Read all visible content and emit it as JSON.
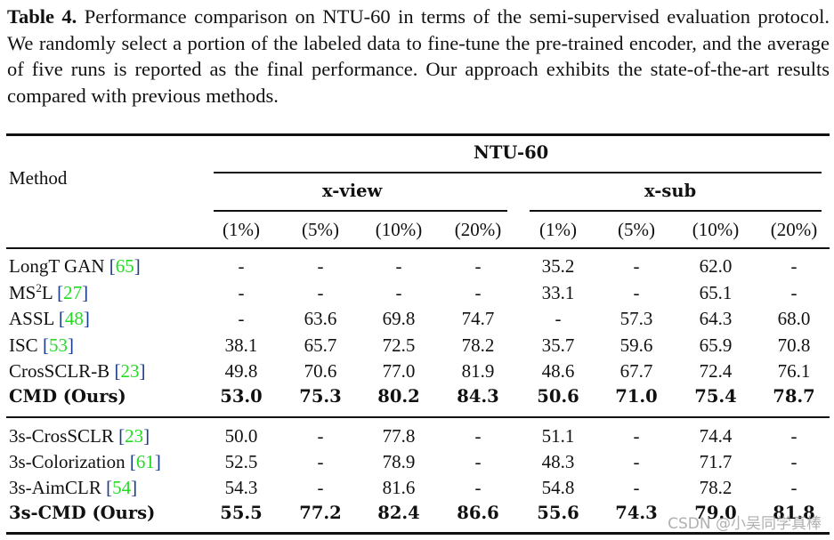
{
  "caption": {
    "label": "Table 4.",
    "text": " Performance comparison on NTU-60 in terms of the semi-supervised evaluation protocol. We randomly select a portion of the labeled data to fine-tune the pre-trained encoder, and the average of five runs is reported as the final performance. Our approach exhibits the state-of-the-art results compared with previous methods."
  },
  "header": {
    "method": "Method",
    "dataset": "NTU-60",
    "groups": [
      "x-view",
      "x-sub"
    ],
    "columns": [
      "(1%)",
      "(5%)",
      "(10%)",
      "(20%)",
      "(1%)",
      "(5%)",
      "(10%)",
      "(20%)"
    ]
  },
  "rows": [
    {
      "name": "LongT GAN",
      "ref": "65",
      "bold": false,
      "values": [
        "-",
        "-",
        "-",
        "-",
        "35.2",
        "-",
        "62.0",
        "-"
      ]
    },
    {
      "name": "MS",
      "sup": "2",
      "name_suffix": "L",
      "ref": "27",
      "bold": false,
      "values": [
        "-",
        "-",
        "-",
        "-",
        "33.1",
        "-",
        "65.1",
        "-"
      ]
    },
    {
      "name": "ASSL",
      "ref": "48",
      "bold": false,
      "values": [
        "-",
        "63.6",
        "69.8",
        "74.7",
        "-",
        "57.3",
        "64.3",
        "68.0"
      ]
    },
    {
      "name": "ISC",
      "ref": "53",
      "bold": false,
      "values": [
        "38.1",
        "65.7",
        "72.5",
        "78.2",
        "35.7",
        "59.6",
        "65.9",
        "70.8"
      ]
    },
    {
      "name": "CrosSCLR-B",
      "ref": "23",
      "bold": false,
      "values": [
        "49.8",
        "70.6",
        "77.0",
        "81.9",
        "48.6",
        "67.7",
        "72.4",
        "76.1"
      ]
    },
    {
      "name": "CMD (Ours)",
      "ref": null,
      "bold": true,
      "values": [
        "53.0",
        "75.3",
        "80.2",
        "84.3",
        "50.6",
        "71.0",
        "75.4",
        "78.7"
      ]
    },
    {
      "name": "3s-CrosSCLR",
      "ref": "23",
      "bold": false,
      "values": [
        "50.0",
        "-",
        "77.8",
        "-",
        "51.1",
        "-",
        "74.4",
        "-"
      ]
    },
    {
      "name": "3s-Colorization",
      "ref": "61",
      "bold": false,
      "values": [
        "52.5",
        "-",
        "78.9",
        "-",
        "48.3",
        "-",
        "71.7",
        "-"
      ]
    },
    {
      "name": "3s-AimCLR",
      "ref": "54",
      "bold": false,
      "values": [
        "54.3",
        "-",
        "81.6",
        "-",
        "54.8",
        "-",
        "78.2",
        "-"
      ]
    },
    {
      "name": "3s-CMD (Ours)",
      "ref": null,
      "bold": true,
      "values": [
        "55.5",
        "77.2",
        "82.4",
        "86.6",
        "55.6",
        "74.3",
        "79.0",
        "81.8"
      ]
    }
  ],
  "colors": {
    "ref_link": "#22dd22",
    "bracket": "#1a3a8a",
    "text": "#111111"
  },
  "watermark": "CSDN @小吴同学真棒"
}
